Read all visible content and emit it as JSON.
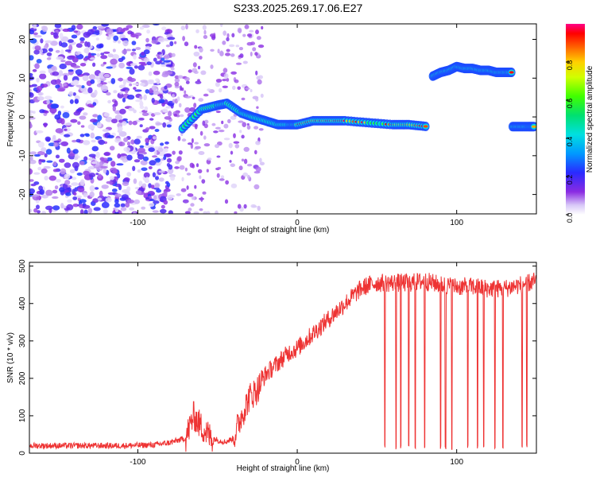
{
  "title": "S233.2025.269.17.06.E27",
  "chart_data": [
    {
      "type": "heatmap",
      "xlabel": "Height of straight line (km)",
      "ylabel": "Frequency (Hz)",
      "xlim": [
        -168,
        150
      ],
      "ylim": [
        -25,
        24
      ],
      "xticks": [
        -100,
        0,
        100
      ],
      "yticks": [
        20,
        10,
        0,
        -10,
        -20
      ],
      "colorbar": {
        "label": "Normalized spectral amplitude",
        "range": [
          0,
          1
        ],
        "ticks": [
          "0.0",
          "0.2",
          "0.4",
          "0.6",
          "0.8"
        ],
        "tick_values": [
          0.0,
          0.2,
          0.4,
          0.6,
          0.8
        ]
      },
      "ridge_segments": [
        {
          "name": "descending trace",
          "x": [
            -72,
            -60,
            -50,
            -44,
            -35,
            -28,
            -20,
            -12,
            -5,
            0,
            10,
            20,
            30,
            45,
            60,
            70,
            82
          ],
          "y": [
            -3,
            2,
            3,
            3.5,
            1,
            0,
            -1,
            -2,
            -2,
            -2,
            -1,
            -1,
            -1,
            -1.5,
            -2,
            -2,
            -2.5
          ]
        },
        {
          "name": "upper band",
          "x": [
            85,
            90,
            95,
            100,
            105,
            110,
            115,
            120,
            125,
            130,
            135
          ],
          "y": [
            10.5,
            11.5,
            12,
            13,
            12.5,
            12.5,
            12,
            12,
            11.5,
            11.5,
            11.5
          ]
        },
        {
          "name": "lower band",
          "x": [
            135,
            140,
            145,
            149
          ],
          "y": [
            -2.5,
            -2.5,
            -2.5,
            -2.5
          ]
        }
      ],
      "noise_region_x": [
        -168,
        -78
      ]
    },
    {
      "type": "line",
      "xlabel": "Height of straight line (km)",
      "ylabel": "SNR (10 * v/v)",
      "xlim": [
        -168,
        150
      ],
      "ylim": [
        0,
        510
      ],
      "xticks": [
        -100,
        0,
        100
      ],
      "yticks": [
        0,
        100,
        200,
        300,
        400,
        500
      ],
      "color": "#ee3333",
      "series": [
        {
          "name": "SNR",
          "x": [
            -168,
            -140,
            -110,
            -90,
            -80,
            -70,
            -65,
            -60,
            -55,
            -50,
            -45,
            -40,
            -35,
            -30,
            -25,
            -20,
            -15,
            -10,
            -5,
            0,
            5,
            10,
            15,
            20,
            25,
            30,
            35,
            40,
            45,
            50,
            60,
            70,
            80,
            90,
            100,
            110,
            120,
            130,
            140,
            150
          ],
          "y": [
            20,
            20,
            20,
            22,
            28,
            40,
            100,
            70,
            45,
            35,
            30,
            40,
            100,
            150,
            170,
            210,
            230,
            250,
            270,
            280,
            300,
            320,
            340,
            360,
            380,
            400,
            420,
            440,
            450,
            455,
            455,
            455,
            460,
            450,
            445,
            445,
            440,
            440,
            450,
            460
          ]
        }
      ],
      "dropouts_x": [
        55,
        62,
        65,
        70,
        74,
        80,
        90,
        93,
        97,
        107,
        113,
        117,
        124,
        129,
        141,
        144
      ]
    }
  ]
}
